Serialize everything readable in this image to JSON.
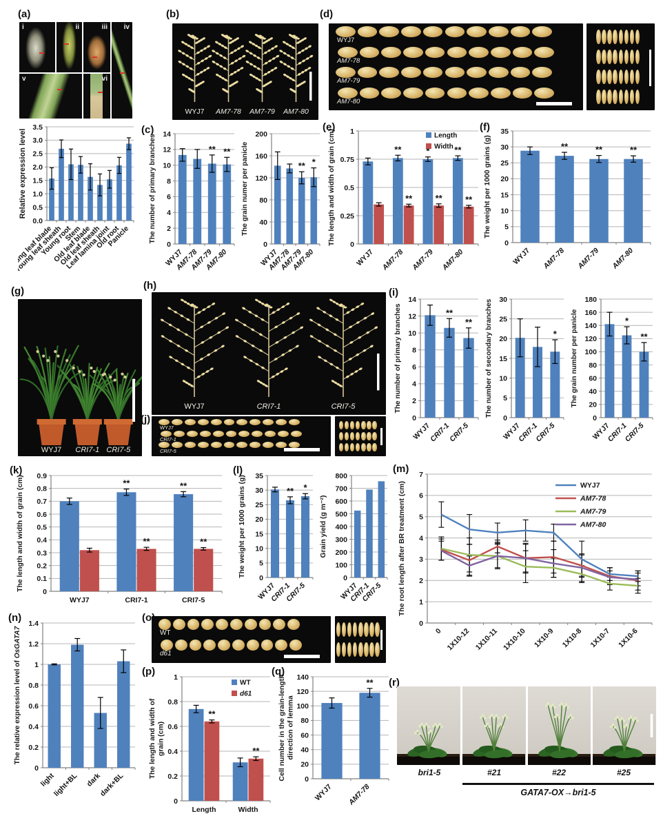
{
  "panels": {
    "a": {
      "label": "(a)",
      "items": [
        "i",
        "ii",
        "iii",
        "iv",
        "v",
        "vi"
      ]
    },
    "b": {
      "label": "(b)",
      "photo_labels": [
        "WYJ7",
        "AM7-78",
        "AM7-79",
        "AM7-80"
      ],
      "italic": [
        false,
        true,
        true,
        true
      ]
    },
    "c": {
      "label": "(c)"
    },
    "d": {
      "label": "(d)",
      "rows": [
        "WYJ7",
        "AM7-78",
        "AM7-79",
        "AM7-80"
      ],
      "italic": [
        false,
        true,
        true,
        true
      ]
    },
    "e": {
      "label": "(e)"
    },
    "f": {
      "label": "(f)"
    },
    "g": {
      "label": "(g)",
      "photo_labels": [
        "WYJ7",
        "CRI7-1",
        "CRI7-5"
      ],
      "italic": [
        false,
        true,
        true
      ]
    },
    "h": {
      "label": "(h)",
      "photo_labels": [
        "WYJ7",
        "CRI7-1",
        "CRI7-5"
      ],
      "italic": [
        false,
        true,
        true
      ]
    },
    "i": {
      "label": "(i)"
    },
    "j": {
      "label": "(j)",
      "rows": [
        "WYJ7",
        "CRI7-1",
        "CRI7-5"
      ],
      "italic": [
        false,
        true,
        true
      ]
    },
    "k": {
      "label": "(k)"
    },
    "l": {
      "label": "(l)"
    },
    "m": {
      "label": "(m)"
    },
    "n": {
      "label": "(n)"
    },
    "o": {
      "label": "(o)",
      "rows": [
        "WT",
        "d61"
      ],
      "italic": [
        false,
        true
      ]
    },
    "p": {
      "label": "(p)"
    },
    "q": {
      "label": "(q)"
    },
    "r": {
      "label": "(r)",
      "photo_labels": [
        "bri1-5",
        "#21",
        "#22",
        "#25"
      ],
      "italic": [
        true,
        true,
        true,
        true
      ],
      "caption": "GATA7-OX→bri1-5"
    }
  },
  "colors": {
    "bar_blue": "#4f81bd",
    "bar_red": "#c0504d",
    "line_green": "#9bbb59",
    "line_purple": "#8064a2"
  },
  "chart_data": [
    {
      "id": "a",
      "type": "bar",
      "ylabel": "Relative expression level",
      "ylim": [
        0,
        3.5
      ],
      "yticks": [
        0,
        0.5,
        1,
        1.5,
        2,
        2.5,
        3,
        3.5
      ],
      "ytick_labels": [
        "0.0",
        "0.5",
        "1.0",
        "1.5",
        "2.0",
        "2.5",
        "3.0",
        "3.5"
      ],
      "categories": [
        "Young leaf blade",
        "Young leaf sheath",
        "Young root",
        "Stem",
        "Old leaf blade",
        "Old leaf sheath",
        "Leaf lamina joint",
        "Old root",
        "Panicle"
      ],
      "series": [
        {
          "name": "",
          "color": "#4f81bd",
          "values": [
            1.57,
            2.68,
            2.1,
            2.08,
            1.63,
            1.33,
            1.54,
            2.06,
            2.87
          ],
          "errors": [
            0.4,
            0.33,
            0.57,
            0.31,
            0.49,
            0.41,
            0.33,
            0.3,
            0.22
          ]
        }
      ]
    },
    {
      "id": "c1",
      "type": "bar",
      "ylabel": "The number of primary branches",
      "ylim": [
        0,
        14
      ],
      "yticks": [
        0,
        2,
        4,
        6,
        8,
        10,
        12,
        14
      ],
      "ytick_labels": [
        "0",
        "2",
        "4",
        "6",
        "8",
        "10",
        "12",
        "14"
      ],
      "categories": [
        "WYJ7",
        "AM7-78",
        "AM7-79",
        "AM7-80"
      ],
      "cat_italic": [
        false,
        true,
        true,
        true
      ],
      "series": [
        {
          "color": "#4f81bd",
          "values": [
            11.3,
            10.8,
            10.2,
            10.1
          ],
          "errors": [
            0.8,
            1.2,
            1.1,
            0.9
          ],
          "sig": [
            "",
            "",
            "**",
            "**"
          ]
        }
      ]
    },
    {
      "id": "c2",
      "type": "bar",
      "ylabel": "The grain numer per panicle",
      "ylim": [
        0,
        200
      ],
      "yticks": [
        0,
        40,
        80,
        120,
        160,
        200
      ],
      "ytick_labels": [
        "0",
        "40",
        "80",
        "120",
        "160",
        "200"
      ],
      "categories": [
        "WYJ7",
        "AM7-78",
        "AM7-79",
        "AM7-80"
      ],
      "cat_italic": [
        false,
        true,
        true,
        true
      ],
      "series": [
        {
          "color": "#4f81bd",
          "values": [
            142,
            137,
            120,
            121
          ],
          "errors": [
            25,
            8,
            11,
            17
          ],
          "sig": [
            "",
            "",
            "**",
            "*"
          ]
        }
      ]
    },
    {
      "id": "e",
      "type": "bar",
      "ylabel": "The length and width of grain (cm)",
      "ylim": [
        0,
        1
      ],
      "yticks": [
        0,
        0.25,
        0.5,
        0.75,
        1
      ],
      "ytick_labels": [
        "0",
        "0.25",
        "0.5",
        "0.75",
        "1"
      ],
      "categories": [
        "WYJ7",
        "AM7-78",
        "AM7-79",
        "AM7-80"
      ],
      "cat_italic": [
        false,
        true,
        true,
        true
      ],
      "legend": {
        "entries": [
          "Length",
          "Width"
        ],
        "italic": [
          false,
          false
        ]
      },
      "series": [
        {
          "name": "Length",
          "color": "#4f81bd",
          "values": [
            0.73,
            0.76,
            0.75,
            0.76
          ],
          "errors": [
            0.03,
            0.025,
            0.02,
            0.02
          ],
          "sig": [
            "",
            "**",
            "*",
            "**"
          ]
        },
        {
          "name": "Width",
          "color": "#c0504d",
          "values": [
            0.35,
            0.34,
            0.34,
            0.33
          ],
          "errors": [
            0.015,
            0.012,
            0.015,
            0.012
          ],
          "sig": [
            "",
            "**",
            "**",
            "**"
          ]
        }
      ]
    },
    {
      "id": "f",
      "type": "bar",
      "ylabel": "The weight per 1000 grains (g)",
      "ylim": [
        0,
        35
      ],
      "yticks": [
        0,
        5,
        10,
        15,
        20,
        25,
        30,
        35
      ],
      "ytick_labels": [
        "0",
        "5",
        "10",
        "15",
        "20",
        "25",
        "30",
        "35"
      ],
      "categories": [
        "WYJ7",
        "AM7-78",
        "AM7-79",
        "AM7-80"
      ],
      "cat_italic": [
        false,
        true,
        true,
        true
      ],
      "series": [
        {
          "color": "#4f81bd",
          "values": [
            28.8,
            27.2,
            26.2,
            26.2
          ],
          "errors": [
            1.2,
            1.1,
            1.1,
            1
          ],
          "sig": [
            "",
            "**",
            "**",
            "**"
          ]
        }
      ]
    },
    {
      "id": "i1",
      "type": "bar",
      "ylabel": "The number of primary branches",
      "ylim": [
        0,
        14
      ],
      "yticks": [
        0,
        2,
        4,
        6,
        8,
        10,
        12,
        14
      ],
      "ytick_labels": [
        "0",
        "2",
        "4",
        "6",
        "8",
        "10",
        "12",
        "14"
      ],
      "categories": [
        "WYJ7",
        "CRI7-1",
        "CRI7-5"
      ],
      "cat_italic": [
        false,
        true,
        true
      ],
      "series": [
        {
          "color": "#4f81bd",
          "values": [
            12.1,
            10.6,
            9.4
          ],
          "errors": [
            1.2,
            1.1,
            1.2
          ],
          "sig": [
            "",
            "**",
            "**"
          ]
        }
      ]
    },
    {
      "id": "i2",
      "type": "bar",
      "ylabel": "The number of secondary branches",
      "ylim": [
        0,
        30
      ],
      "yticks": [
        0,
        5,
        10,
        15,
        20,
        25,
        30
      ],
      "ytick_labels": [
        "0",
        "5",
        "10",
        "15",
        "20",
        "25",
        "30"
      ],
      "categories": [
        "WYJ7",
        "CRI7-1",
        "CRI7-5"
      ],
      "cat_italic": [
        false,
        true,
        true
      ],
      "series": [
        {
          "color": "#4f81bd",
          "values": [
            20.2,
            17.9,
            16.7
          ],
          "errors": [
            4.8,
            5,
            3
          ],
          "sig": [
            "",
            "",
            "*"
          ]
        }
      ]
    },
    {
      "id": "i3",
      "type": "bar",
      "ylabel": "The grain number per panicle",
      "ylim": [
        0,
        180
      ],
      "yticks": [
        0,
        20,
        40,
        60,
        80,
        100,
        120,
        140,
        160,
        180
      ],
      "ytick_labels": [
        "0",
        "20",
        "40",
        "60",
        "80",
        "100",
        "120",
        "140",
        "160",
        "180"
      ],
      "categories": [
        "WYJ7",
        "CRI7-1",
        "CRI7-5"
      ],
      "cat_italic": [
        false,
        true,
        true
      ],
      "series": [
        {
          "color": "#4f81bd",
          "values": [
            142,
            125,
            100
          ],
          "errors": [
            18,
            13,
            14
          ],
          "sig": [
            "",
            "*",
            "**"
          ]
        }
      ]
    },
    {
      "id": "k",
      "type": "bar",
      "ylabel": "The length and width of grain (cm)",
      "ylim": [
        0,
        0.9
      ],
      "yticks": [
        0,
        0.1,
        0.2,
        0.3,
        0.4,
        0.5,
        0.6,
        0.7,
        0.8,
        0.9
      ],
      "ytick_labels": [
        "0",
        "0.1",
        "0.2",
        "0.3",
        "0.4",
        "0.5",
        "0.6",
        "0.7",
        "0.8",
        "0.9"
      ],
      "categories": [
        "WYJ7",
        "CRI7-1",
        "CRI7-5"
      ],
      "cat_italic": [
        false,
        false,
        false
      ],
      "series": [
        {
          "name": "Length",
          "color": "#4f81bd",
          "values": [
            0.7,
            0.77,
            0.755
          ],
          "errors": [
            0.025,
            0.025,
            0.02
          ],
          "sig": [
            "",
            "**",
            "**"
          ]
        },
        {
          "name": "Width",
          "color": "#c0504d",
          "values": [
            0.32,
            0.33,
            0.33
          ],
          "errors": [
            0.015,
            0.012,
            0.01
          ],
          "sig": [
            "",
            "**",
            "**"
          ]
        }
      ]
    },
    {
      "id": "l1",
      "type": "bar",
      "ylabel": "The weight per 1000 grains (g)",
      "ylim": [
        0,
        35
      ],
      "yticks": [
        0,
        5,
        10,
        15,
        20,
        25,
        30,
        35
      ],
      "ytick_labels": [
        "0",
        "5",
        "10",
        "15",
        "20",
        "25",
        "30",
        "35"
      ],
      "categories": [
        "WYJ7",
        "CRI7-1",
        "CRI7-5"
      ],
      "cat_italic": [
        false,
        true,
        true
      ],
      "series": [
        {
          "color": "#4f81bd",
          "values": [
            30.2,
            26.5,
            27.9
          ],
          "errors": [
            0.8,
            1.2,
            0.9
          ],
          "sig": [
            "",
            "**",
            "*"
          ]
        }
      ]
    },
    {
      "id": "l2",
      "type": "bar",
      "ylabel": "Grain yield (g m⁻²)",
      "ylim": [
        0,
        800
      ],
      "yticks": [
        0,
        100,
        200,
        300,
        400,
        500,
        600,
        700,
        800
      ],
      "ytick_labels": [
        "0",
        "100",
        "200",
        "300",
        "400",
        "500",
        "600",
        "700",
        "800"
      ],
      "categories": [
        "WYJ7",
        "CRI7-1",
        "CRI7-5"
      ],
      "cat_italic": [
        false,
        true,
        true
      ],
      "series": [
        {
          "color": "#4f81bd",
          "values": [
            525,
            690,
            755
          ]
        }
      ]
    },
    {
      "id": "m",
      "type": "line",
      "ylabel": "The root length after BR treatment (cm)",
      "ylim": [
        0,
        7
      ],
      "yticks": [
        0,
        1,
        2,
        3,
        4,
        5,
        6,
        7
      ],
      "ytick_labels": [
        "0",
        "1",
        "2",
        "3",
        "4",
        "5",
        "6",
        "7"
      ],
      "categories": [
        "0",
        "1X10-12",
        "1X10-11",
        "1X10-10",
        "1X10-9",
        "1X10-8",
        "1X10-7",
        "1X10-6"
      ],
      "legend": {
        "entries": [
          "WYJ7",
          "AM7-78",
          "AM7-79",
          "AM7-80"
        ],
        "italic": [
          false,
          true,
          true,
          true
        ]
      },
      "series": [
        {
          "name": "WYJ7",
          "color": "#4f81bd",
          "values": [
            5.1,
            4.4,
            4.25,
            4.35,
            4.25,
            3.0,
            2.3,
            2.2
          ],
          "errors": [
            0.6,
            0.7,
            0.45,
            0.5,
            0.4,
            0.85,
            0.3,
            0.25
          ]
        },
        {
          "name": "AM7-78",
          "color": "#c0504d",
          "values": [
            3.45,
            2.95,
            3.6,
            3.05,
            3.1,
            2.7,
            2.2,
            2.0
          ],
          "errors": [
            0.5,
            0.75,
            0.3,
            0.65,
            0.75,
            0.5,
            0.4,
            0.45
          ]
        },
        {
          "name": "AM7-79",
          "color": "#9bbb59",
          "values": [
            3.5,
            3.2,
            3.15,
            2.65,
            2.6,
            2.3,
            1.85,
            1.75
          ],
          "errors": [
            0.55,
            0.8,
            0.55,
            0.75,
            0.45,
            0.4,
            0.3,
            0.35
          ]
        },
        {
          "name": "AM7-80",
          "color": "#8064a2",
          "values": [
            3.4,
            2.7,
            3.15,
            3.05,
            2.8,
            2.6,
            2.15,
            2.05
          ],
          "errors": [
            0.45,
            0.45,
            0.6,
            0.7,
            0.65,
            0.65,
            0.3,
            0.3
          ]
        }
      ]
    },
    {
      "id": "n",
      "type": "bar",
      "ylabel": "The relative expression level of OsGATA7",
      "ylabel_em": "OsGATA7",
      "ylim": [
        0,
        1.4
      ],
      "yticks": [
        0,
        0.2,
        0.4,
        0.6,
        0.8,
        1,
        1.2,
        1.4
      ],
      "ytick_labels": [
        "0",
        "0.2",
        "0.4",
        "0.6",
        "0.8",
        "1",
        "1.2",
        "1.4"
      ],
      "categories": [
        "light",
        "light+BL",
        "dark",
        "dark+BL"
      ],
      "cat_italic": [
        false,
        false,
        false,
        false
      ],
      "series": [
        {
          "color": "#4f81bd",
          "values": [
            1.0,
            1.19,
            0.53,
            1.03
          ],
          "errors": [
            0.005,
            0.06,
            0.15,
            0.11
          ]
        }
      ]
    },
    {
      "id": "p",
      "type": "bar",
      "ylabel": "The length and width of\ngrain (cm)",
      "ylim": [
        0,
        1
      ],
      "yticks": [
        0,
        0.2,
        0.4,
        0.6,
        0.8,
        1
      ],
      "ytick_labels": [
        "0",
        "0.2",
        "0.4",
        "0.6",
        "0.8",
        "1"
      ],
      "categories": [
        "Length",
        "Width"
      ],
      "cat_italic": [
        false,
        false
      ],
      "legend": {
        "entries": [
          "WT",
          "d61"
        ],
        "italic": [
          false,
          true
        ]
      },
      "series": [
        {
          "name": "WT",
          "color": "#4f81bd",
          "values": [
            0.74,
            0.31
          ],
          "errors": [
            0.03,
            0.035
          ]
        },
        {
          "name": "d61",
          "color": "#c0504d",
          "values": [
            0.64,
            0.34
          ],
          "errors": [
            0.012,
            0.015
          ],
          "sig": [
            "**",
            "**"
          ]
        }
      ]
    },
    {
      "id": "q",
      "type": "bar",
      "ylabel": "Cell number in the grain-length\ndirection of lemma",
      "ylim": [
        0,
        140
      ],
      "yticks": [
        0,
        20,
        40,
        60,
        80,
        100,
        120,
        140
      ],
      "ytick_labels": [
        "0",
        "20",
        "40",
        "60",
        "80",
        "100",
        "120",
        "140"
      ],
      "categories": [
        "WYJ7",
        "AM7-78"
      ],
      "cat_italic": [
        false,
        true
      ],
      "series": [
        {
          "color": "#4f81bd",
          "values": [
            104,
            118
          ],
          "errors": [
            7,
            6
          ],
          "sig": [
            "",
            "**"
          ]
        }
      ]
    }
  ]
}
